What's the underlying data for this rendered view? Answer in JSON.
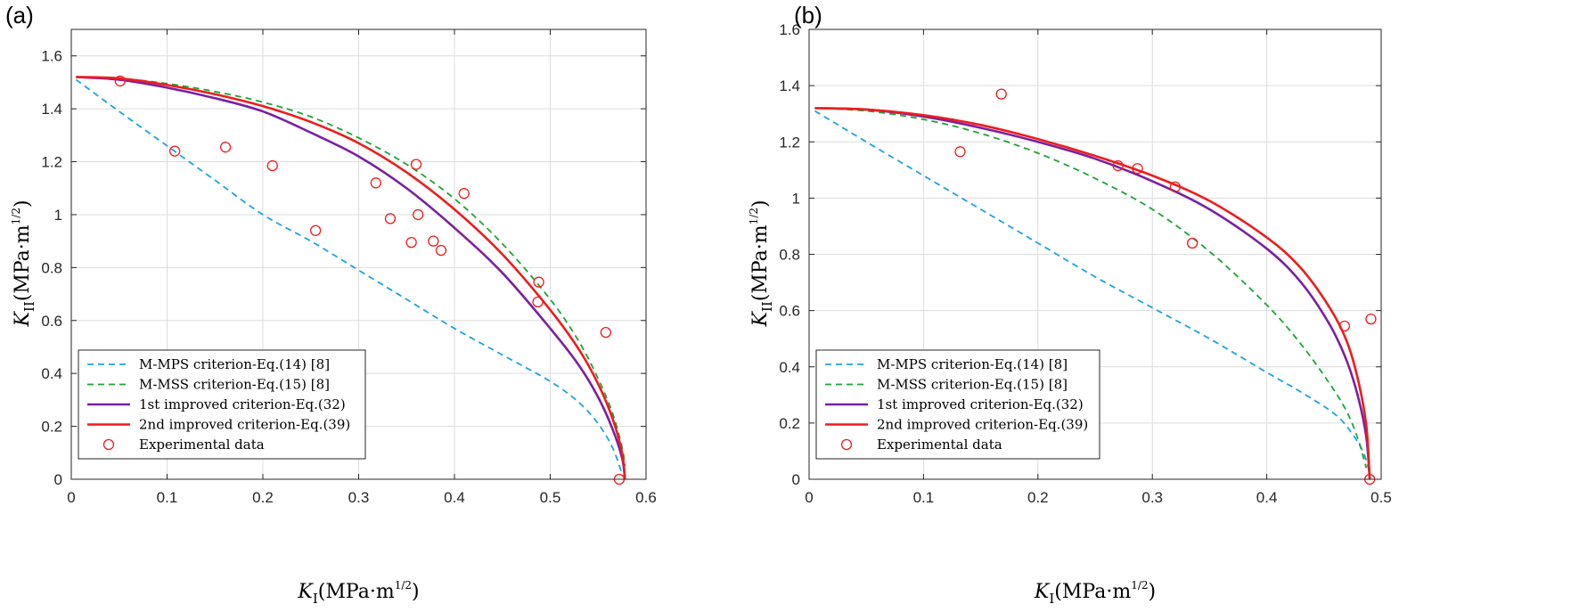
{
  "panels": [
    {
      "label": "(a)"
    },
    {
      "label": "(b)"
    }
  ],
  "colors": {
    "mmps": "#1aa3e6",
    "mmss": "#1aa533",
    "first": "#7b1fa2",
    "second": "#ee1c1c",
    "experimental": "#ee1c1c"
  },
  "chart_data": [
    {
      "type": "line",
      "xlabel": "K_I(MPa·m^1/2)",
      "ylabel": "K_II(MPa·m^1/2)",
      "xlim": [
        0,
        0.6
      ],
      "ylim": [
        0,
        1.7
      ],
      "xticks": [
        0,
        0.1,
        0.2,
        0.3,
        0.4,
        0.5,
        0.6
      ],
      "xtick_labels": [
        "0",
        "0.1",
        "0.2",
        "0.3",
        "0.4",
        "0.5",
        "0.6"
      ],
      "yticks": [
        0,
        0.2,
        0.4,
        0.6,
        0.8,
        1.0,
        1.2,
        1.4,
        1.6
      ],
      "ytick_labels": [
        "0",
        "0.2",
        "0.4",
        "0.6",
        "0.8",
        "1",
        "1.2",
        "1.4",
        "1.6"
      ],
      "grid": true,
      "legend_position": "bottom-left",
      "series": [
        {
          "name": "M-MPS criterion-Eq.(14) [8]",
          "style": "dashed",
          "color_key": "mmps",
          "x": [
            0.005,
            0.05,
            0.1,
            0.15,
            0.2,
            0.25,
            0.3,
            0.35,
            0.4,
            0.45,
            0.5,
            0.53,
            0.55,
            0.565,
            0.575
          ],
          "y": [
            1.51,
            1.39,
            1.26,
            1.13,
            1.0,
            0.9,
            0.79,
            0.68,
            0.57,
            0.47,
            0.37,
            0.29,
            0.21,
            0.12,
            0.02
          ]
        },
        {
          "name": "M-MSS criterion-Eq.(15) [8]",
          "style": "dashed",
          "color_key": "mmss",
          "x": [
            0.005,
            0.05,
            0.1,
            0.15,
            0.2,
            0.25,
            0.3,
            0.35,
            0.4,
            0.45,
            0.5,
            0.53,
            0.55,
            0.565,
            0.575,
            0.578
          ],
          "y": [
            1.52,
            1.515,
            1.495,
            1.465,
            1.425,
            1.37,
            1.29,
            1.19,
            1.06,
            0.89,
            0.68,
            0.52,
            0.38,
            0.25,
            0.12,
            0.05
          ]
        },
        {
          "name": "1st improved criterion-Eq.(32)",
          "style": "solid",
          "color_key": "first",
          "x": [
            0.005,
            0.05,
            0.1,
            0.15,
            0.2,
            0.25,
            0.3,
            0.35,
            0.4,
            0.45,
            0.5,
            0.53,
            0.55,
            0.565,
            0.575,
            0.578
          ],
          "y": [
            1.52,
            1.51,
            1.48,
            1.44,
            1.39,
            1.31,
            1.22,
            1.1,
            0.95,
            0.78,
            0.57,
            0.43,
            0.31,
            0.19,
            0.08,
            0.0
          ]
        },
        {
          "name": "2nd improved criterion-Eq.(39)",
          "style": "solid",
          "color_key": "second",
          "x": [
            0.005,
            0.05,
            0.1,
            0.15,
            0.2,
            0.25,
            0.3,
            0.35,
            0.4,
            0.45,
            0.5,
            0.53,
            0.55,
            0.565,
            0.575,
            0.578
          ],
          "y": [
            1.52,
            1.515,
            1.49,
            1.455,
            1.41,
            1.35,
            1.27,
            1.16,
            1.02,
            0.85,
            0.64,
            0.49,
            0.36,
            0.23,
            0.1,
            0.0
          ]
        },
        {
          "name": "Experimental data",
          "style": "marker",
          "color_key": "experimental",
          "x": [
            0.051,
            0.108,
            0.161,
            0.21,
            0.255,
            0.318,
            0.333,
            0.355,
            0.36,
            0.362,
            0.378,
            0.386,
            0.41,
            0.487,
            0.488,
            0.558,
            0.572
          ],
          "y": [
            1.505,
            1.24,
            1.255,
            1.185,
            0.94,
            1.12,
            0.985,
            0.895,
            1.19,
            1.0,
            0.9,
            0.865,
            1.08,
            0.67,
            0.745,
            0.555,
            0.0
          ]
        }
      ]
    },
    {
      "type": "line",
      "xlabel": "K_I(MPa·m^1/2)",
      "ylabel": "K_II(MPa·m^1/2)",
      "xlim": [
        0,
        0.5
      ],
      "ylim": [
        0,
        1.6
      ],
      "xticks": [
        0,
        0.1,
        0.2,
        0.3,
        0.4,
        0.5
      ],
      "xtick_labels": [
        "0",
        "0.1",
        "0.2",
        "0.3",
        "0.4",
        "0.5"
      ],
      "yticks": [
        0,
        0.2,
        0.4,
        0.6,
        0.8,
        1.0,
        1.2,
        1.4,
        1.6
      ],
      "ytick_labels": [
        "0",
        "0.2",
        "0.4",
        "0.6",
        "0.8",
        "1",
        "1.2",
        "1.4",
        "1.6"
      ],
      "grid": true,
      "legend_position": "bottom-left",
      "series": [
        {
          "name": "M-MPS criterion-Eq.(14) [8]",
          "style": "dashed",
          "color_key": "mmps",
          "x": [
            0.005,
            0.05,
            0.1,
            0.15,
            0.2,
            0.25,
            0.3,
            0.35,
            0.4,
            0.43,
            0.46,
            0.475,
            0.485,
            0.49
          ],
          "y": [
            1.31,
            1.2,
            1.08,
            0.96,
            0.84,
            0.72,
            0.61,
            0.5,
            0.38,
            0.31,
            0.23,
            0.16,
            0.09,
            0.02
          ]
        },
        {
          "name": "M-MSS criterion-Eq.(15) [8]",
          "style": "dashed",
          "color_key": "mmss",
          "x": [
            0.005,
            0.05,
            0.1,
            0.15,
            0.2,
            0.25,
            0.3,
            0.35,
            0.4,
            0.43,
            0.455,
            0.47,
            0.48,
            0.487
          ],
          "y": [
            1.32,
            1.31,
            1.28,
            1.23,
            1.16,
            1.07,
            0.96,
            0.81,
            0.62,
            0.48,
            0.34,
            0.24,
            0.14,
            0.04
          ]
        },
        {
          "name": "1st improved criterion-Eq.(32)",
          "style": "solid",
          "color_key": "first",
          "x": [
            0.005,
            0.05,
            0.1,
            0.15,
            0.2,
            0.25,
            0.3,
            0.35,
            0.4,
            0.43,
            0.455,
            0.47,
            0.48,
            0.487,
            0.49
          ],
          "y": [
            1.32,
            1.315,
            1.29,
            1.25,
            1.2,
            1.14,
            1.06,
            0.96,
            0.82,
            0.7,
            0.55,
            0.42,
            0.29,
            0.15,
            0.0
          ]
        },
        {
          "name": "2nd improved criterion-Eq.(39)",
          "style": "solid",
          "color_key": "second",
          "x": [
            0.005,
            0.05,
            0.1,
            0.15,
            0.2,
            0.25,
            0.3,
            0.35,
            0.4,
            0.43,
            0.455,
            0.47,
            0.48,
            0.487,
            0.49
          ],
          "y": [
            1.32,
            1.315,
            1.295,
            1.26,
            1.21,
            1.15,
            1.08,
            0.99,
            0.86,
            0.75,
            0.61,
            0.49,
            0.35,
            0.19,
            0.0
          ]
        },
        {
          "name": "Experimental data",
          "style": "marker",
          "color_key": "experimental",
          "x": [
            0.132,
            0.168,
            0.27,
            0.287,
            0.32,
            0.335,
            0.468,
            0.491,
            0.49
          ],
          "y": [
            1.165,
            1.37,
            1.115,
            1.105,
            1.04,
            0.84,
            0.545,
            0.57,
            0.0
          ]
        }
      ]
    }
  ]
}
